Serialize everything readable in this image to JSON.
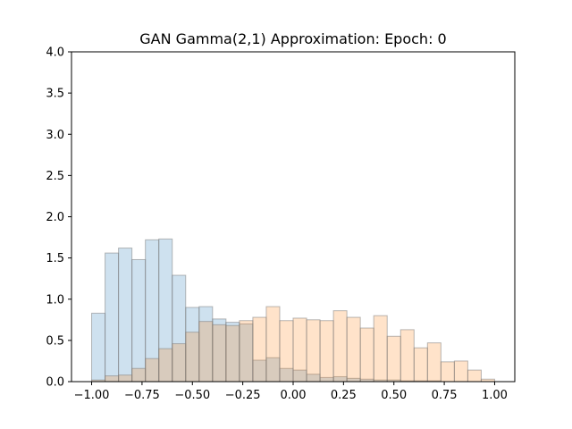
{
  "chart_data": {
    "type": "bar",
    "title": "GAN Gamma(2,1) Approximation: Epoch: 0",
    "xlabel": "",
    "ylabel": "",
    "xlim": [
      -1.1,
      1.1
    ],
    "ylim": [
      0,
      4.0
    ],
    "grid": false,
    "x_ticks": [
      "−1.00",
      "−0.75",
      "−0.50",
      "−0.25",
      "0.00",
      "0.25",
      "0.50",
      "0.75",
      "1.00"
    ],
    "x_tick_values": [
      -1.0,
      -0.75,
      -0.5,
      -0.25,
      0.0,
      0.25,
      0.5,
      0.75,
      1.0
    ],
    "y_ticks": [
      "0.0",
      "0.5",
      "1.0",
      "1.5",
      "2.0",
      "2.5",
      "3.0",
      "3.5",
      "4.0"
    ],
    "y_tick_values": [
      0.0,
      0.5,
      1.0,
      1.5,
      2.0,
      2.5,
      3.0,
      3.5,
      4.0
    ],
    "bins": {
      "start": -1.0,
      "end": 1.0,
      "count": 30
    },
    "series": [
      {
        "color": "#1f77b4",
        "alpha": 0.22,
        "values": [
          0.83,
          1.56,
          1.62,
          1.48,
          1.72,
          1.73,
          1.29,
          0.9,
          0.91,
          0.76,
          0.72,
          0.7,
          0.26,
          0.29,
          0.16,
          0.14,
          0.09,
          0.05,
          0.06,
          0.04,
          0.03,
          0.02,
          0.02,
          0.01,
          0.01,
          0.01,
          0.0,
          0.0,
          0.0,
          0.0
        ]
      },
      {
        "color": "#ff7f0e",
        "alpha": 0.22,
        "values": [
          0.02,
          0.07,
          0.08,
          0.16,
          0.28,
          0.4,
          0.46,
          0.6,
          0.73,
          0.69,
          0.68,
          0.74,
          0.78,
          0.91,
          0.74,
          0.77,
          0.75,
          0.74,
          0.86,
          0.78,
          0.65,
          0.8,
          0.55,
          0.63,
          0.41,
          0.47,
          0.24,
          0.25,
          0.14,
          0.03
        ]
      }
    ]
  }
}
